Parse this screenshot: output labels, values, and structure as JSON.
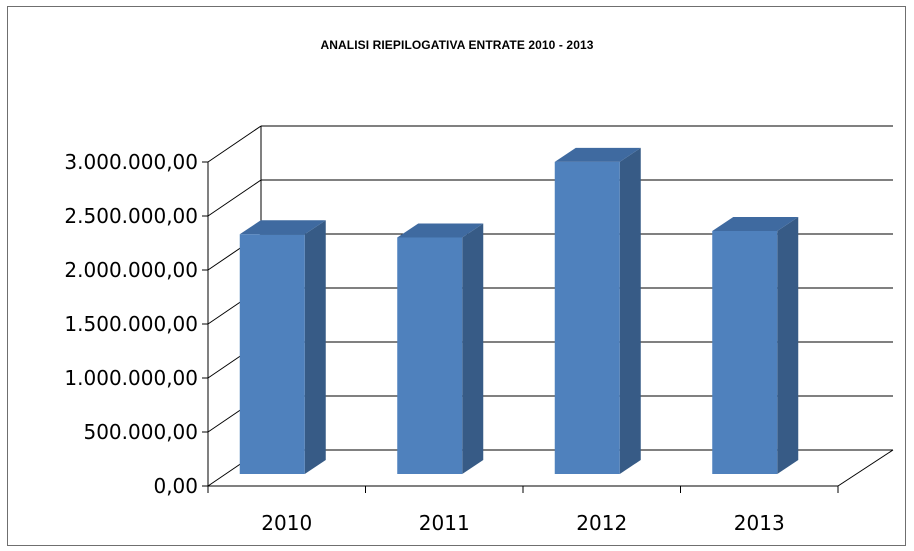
{
  "chart_data": {
    "type": "bar",
    "title": "ANALISI RIEPILOGATIVA ENTRATE 2010 - 2013",
    "categories": [
      "2010",
      "2011",
      "2012",
      "2013"
    ],
    "values": [
      2220000,
      2190000,
      2890000,
      2250000
    ],
    "ylim": [
      0,
      3000000
    ],
    "yticks": [
      0,
      500000,
      1000000,
      1500000,
      2000000,
      2500000,
      3000000
    ],
    "ytick_labels": [
      "0,00",
      "500.000,00",
      "1.000.000,00",
      "1.500.000,00",
      "2.000.000,00",
      "2.500.000,00",
      "3.000.000,00"
    ],
    "grid": true,
    "legend": "none",
    "style": "3d-column",
    "colors": {
      "bar_front": "#4f81bd",
      "bar_side": "#375b86",
      "bar_top": "#3f6aa0",
      "grid": "#000000"
    }
  }
}
